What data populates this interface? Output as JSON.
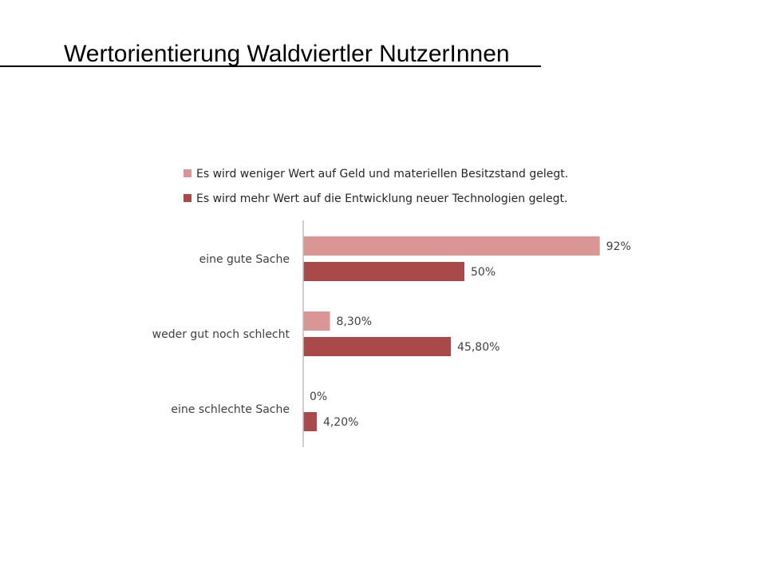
{
  "slide": {
    "title": "Wertorientierung Waldviertler NutzerInnen"
  },
  "chart_data": {
    "type": "bar",
    "orientation": "horizontal",
    "categories": [
      "eine gute Sache",
      "weder gut noch schlecht",
      "eine schlechte Sache"
    ],
    "series": [
      {
        "name": "Es wird weniger Wert auf Geld und materiellen Besitzstand gelegt.",
        "values": [
          92,
          8.3,
          0
        ],
        "labels": [
          "92%",
          "8,30%",
          "0%"
        ],
        "color": "#d99694"
      },
      {
        "name": "Es wird mehr Wert auf die Entwicklung neuer Technologien gelegt.",
        "values": [
          50,
          45.8,
          4.2
        ],
        "labels": [
          "50%",
          "45,80%",
          "4,20%"
        ],
        "color": "#a9494a"
      }
    ],
    "xlim": [
      0,
      100
    ],
    "grid": false,
    "legend_position": "top"
  },
  "colors": {
    "axis": "#bfbfbf",
    "label_text": "#404040"
  }
}
